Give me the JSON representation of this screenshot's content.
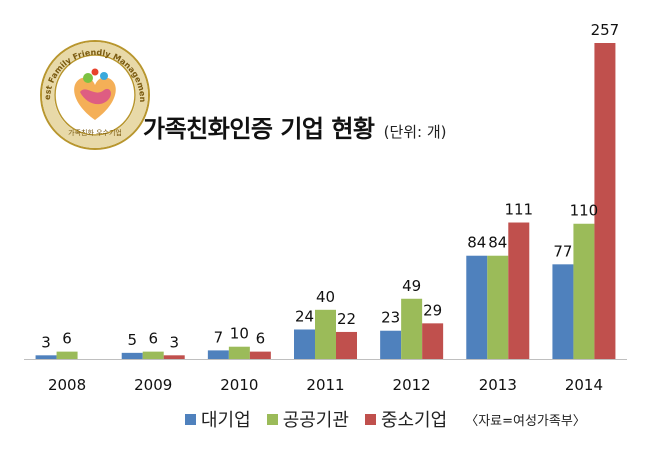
{
  "title": "가족친화인증 기업 현황",
  "unit": "(단위: 개)",
  "source": "〈자료=여성가족부〉",
  "logo": {
    "ring_text": "Best Family Friendly Management",
    "bottom_text": "가족친화 우수기업",
    "ring_color": "#b8962e"
  },
  "chart_data": {
    "type": "bar",
    "title": "가족친화인증 기업 현황",
    "categories": [
      "2008",
      "2009",
      "2010",
      "2011",
      "2012",
      "2013",
      "2014"
    ],
    "series": [
      {
        "name": "대기업",
        "color": "#4f81bd",
        "values": [
          3,
          5,
          7,
          24,
          23,
          84,
          77
        ]
      },
      {
        "name": "공공기관",
        "color": "#9bbb59",
        "values": [
          6,
          6,
          10,
          40,
          49,
          84,
          110
        ]
      },
      {
        "name": "중소기업",
        "color": "#c0504d",
        "values": [
          null,
          3,
          6,
          22,
          29,
          111,
          257
        ]
      }
    ],
    "ylim": [
      0,
      257
    ],
    "grid": false,
    "legend_position": "bottom"
  }
}
